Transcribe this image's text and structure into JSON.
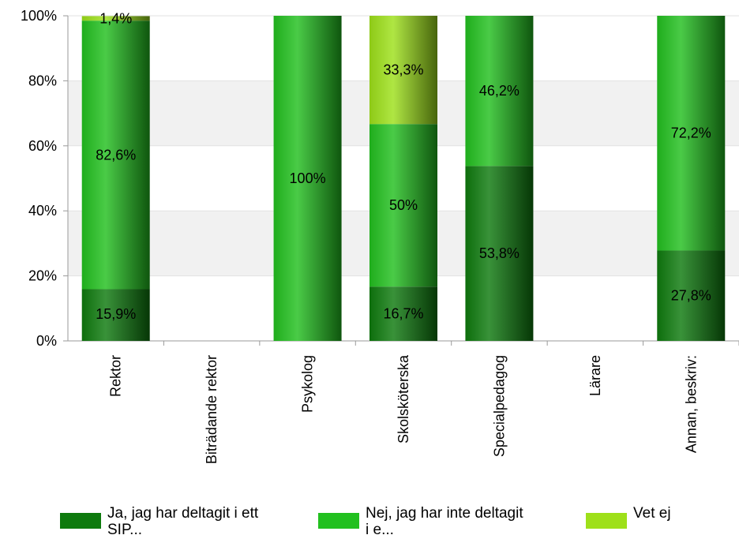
{
  "chart_data": {
    "type": "bar",
    "stacked": true,
    "categories": [
      "Rektor",
      "Biträdande rektor",
      "Psykolog",
      "Skolsköterska",
      "Specialpedagog",
      "Lärare",
      "Annan, beskriv:"
    ],
    "series": [
      {
        "name": "Ja, jag har deltagit i ett SIP...",
        "color": "#0e7a0d",
        "values": [
          15.9,
          0,
          0,
          16.7,
          53.8,
          0,
          27.8
        ],
        "labels": [
          "15,9%",
          "",
          "",
          "16,7%",
          "53,8%",
          "",
          "27,8%"
        ]
      },
      {
        "name": "Nej, jag har inte deltagit i e...",
        "color": "#22c01f",
        "values": [
          82.6,
          0,
          100,
          50,
          46.2,
          0,
          72.2
        ],
        "labels": [
          "82,6%",
          "",
          "100%",
          "50%",
          "46,2%",
          "",
          "72,2%"
        ]
      },
      {
        "name": "Vet ej",
        "color": "#9ee01a",
        "values": [
          1.4,
          0,
          0,
          33.3,
          0,
          0,
          0
        ],
        "labels": [
          "1,4%",
          "",
          "",
          "33,3%",
          "",
          "",
          ""
        ]
      }
    ],
    "yticks": [
      "0%",
      "20%",
      "40%",
      "60%",
      "80%",
      "100%"
    ],
    "ylim": [
      0,
      100
    ],
    "grid": "alternating horizontal bands",
    "legend_position": "bottom"
  },
  "legend": {
    "items": [
      {
        "text": "Ja, jag har deltagit i ett\nSIP...",
        "color": "#0e7a0d"
      },
      {
        "text": "Nej, jag har inte deltagit\ni e...",
        "color": "#22c01f"
      },
      {
        "text": "Vet ej",
        "color": "#9ee01a"
      }
    ]
  }
}
